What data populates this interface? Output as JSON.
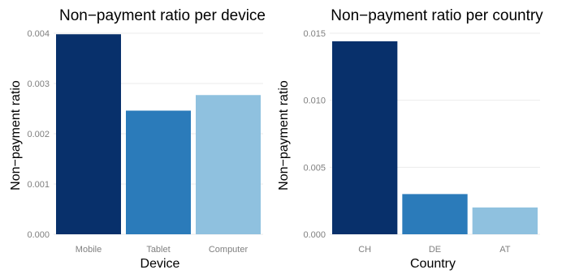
{
  "chart_data": [
    {
      "type": "bar",
      "title": "Non−payment ratio per device",
      "xlabel": "Device",
      "ylabel": "Non−payment ratio",
      "categories": [
        "Mobile",
        "Tablet",
        "Computer"
      ],
      "values": [
        0.00398,
        0.00246,
        0.00277
      ],
      "ylim": [
        0,
        0.004
      ],
      "yticks": [
        0.0,
        0.001,
        0.002,
        0.003,
        0.004
      ],
      "ytick_labels": [
        "0.000",
        "0.001",
        "0.002",
        "0.003",
        "0.004"
      ],
      "colors": [
        "#08306b",
        "#2b7bba",
        "#8fc1df"
      ],
      "grid": true,
      "legend": "none"
    },
    {
      "type": "bar",
      "title": "Non−payment ratio per country",
      "xlabel": "Country",
      "ylabel": "Non−payment ratio",
      "categories": [
        "CH",
        "DE",
        "AT"
      ],
      "values": [
        0.0144,
        0.003,
        0.002
      ],
      "ylim": [
        0,
        0.015
      ],
      "yticks": [
        0.0,
        0.005,
        0.01,
        0.015
      ],
      "ytick_labels": [
        "0.000",
        "0.005",
        "0.010",
        "0.015"
      ],
      "colors": [
        "#08306b",
        "#2b7bba",
        "#8fc1df"
      ],
      "grid": true,
      "legend": "none"
    }
  ]
}
